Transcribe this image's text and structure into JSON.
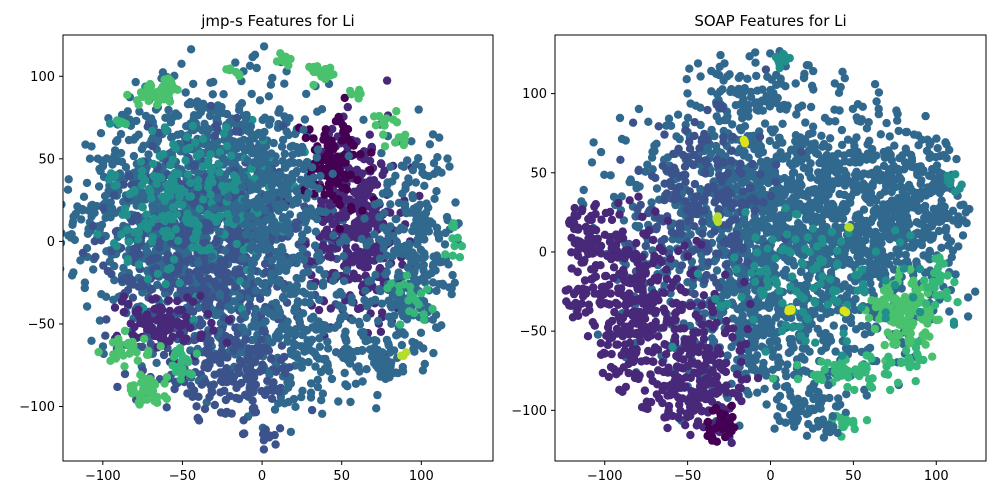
{
  "chart_data": [
    {
      "type": "scatter",
      "title": "jmp-s Features for Li",
      "xlabel": "",
      "ylabel": "",
      "xlim": [
        -125,
        145
      ],
      "ylim": [
        -133,
        125
      ],
      "xticks": [
        -100,
        -50,
        0,
        50,
        100
      ],
      "yticks": [
        -100,
        -50,
        0,
        50,
        100
      ],
      "xtick_labels": [
        "−100",
        "−50",
        "0",
        "50",
        "100"
      ],
      "ytick_labels": [
        "−100",
        "−50",
        "0",
        "50",
        "100"
      ],
      "grid": false,
      "legend": "none",
      "colormap": "viridis",
      "colors": {
        "dark_purple": "#440154",
        "indigo": "#482878",
        "slate_blue": "#3b528b",
        "steel_blue": "#31688e",
        "teal": "#21908d",
        "green": "#35b779",
        "light_green": "#4ac16d",
        "yellow_green": "#b5de2b"
      },
      "clusters": [
        {
          "cx": -40,
          "cy": 20,
          "sx": 38,
          "sy": 38,
          "n": 1300,
          "color": "steel_blue"
        },
        {
          "cx": -35,
          "cy": -10,
          "sx": 32,
          "sy": 32,
          "n": 500,
          "color": "slate_blue"
        },
        {
          "cx": -45,
          "cy": 25,
          "sx": 25,
          "sy": 25,
          "n": 220,
          "color": "teal"
        },
        {
          "cx": 60,
          "cy": 10,
          "sx": 14,
          "sy": 30,
          "n": 320,
          "color": "indigo"
        },
        {
          "cx": 45,
          "cy": 45,
          "sx": 10,
          "sy": 15,
          "n": 110,
          "color": "dark_purple"
        },
        {
          "cx": 95,
          "cy": -10,
          "sx": 20,
          "sy": 35,
          "n": 320,
          "color": "steel_blue"
        },
        {
          "cx": 25,
          "cy": -65,
          "sx": 30,
          "sy": 18,
          "n": 260,
          "color": "steel_blue"
        },
        {
          "cx": -20,
          "cy": -80,
          "sx": 22,
          "sy": 14,
          "n": 160,
          "color": "slate_blue"
        },
        {
          "cx": 10,
          "cy": 15,
          "sx": 15,
          "sy": 30,
          "n": 220,
          "color": "steel_blue"
        },
        {
          "cx": 75,
          "cy": -75,
          "sx": 5,
          "sy": 4,
          "n": 40,
          "color": "steel_blue"
        },
        {
          "cx": -60,
          "cy": -50,
          "sx": 15,
          "sy": 10,
          "n": 90,
          "color": "indigo"
        },
        {
          "cx": 5,
          "cy": -118,
          "sx": 3,
          "sy": 3,
          "n": 10,
          "color": "slate_blue"
        },
        {
          "cx": -70,
          "cy": 88,
          "sx": 6,
          "sy": 3,
          "n": 35,
          "color": "light_green"
        },
        {
          "cx": -58,
          "cy": 93,
          "sx": 3,
          "sy": 3,
          "n": 20,
          "color": "light_green"
        },
        {
          "cx": 38,
          "cy": 103,
          "sx": 4,
          "sy": 3,
          "n": 20,
          "color": "light_green"
        },
        {
          "cx": 14,
          "cy": 110,
          "sx": 2,
          "sy": 2,
          "n": 8,
          "color": "light_green"
        },
        {
          "cx": -18,
          "cy": 102,
          "sx": 2,
          "sy": 2,
          "n": 6,
          "color": "light_green"
        },
        {
          "cx": 58,
          "cy": 90,
          "sx": 2,
          "sy": 2,
          "n": 6,
          "color": "light_green"
        },
        {
          "cx": 78,
          "cy": 72,
          "sx": 4,
          "sy": 4,
          "n": 12,
          "color": "light_green"
        },
        {
          "cx": 88,
          "cy": 62,
          "sx": 3,
          "sy": 3,
          "n": 8,
          "color": "light_green"
        },
        {
          "cx": -85,
          "cy": -65,
          "sx": 7,
          "sy": 4,
          "n": 30,
          "color": "light_green"
        },
        {
          "cx": -72,
          "cy": -92,
          "sx": 6,
          "sy": 6,
          "n": 40,
          "color": "light_green"
        },
        {
          "cx": -50,
          "cy": -75,
          "sx": 5,
          "sy": 5,
          "n": 20,
          "color": "green"
        },
        {
          "cx": 95,
          "cy": -35,
          "sx": 8,
          "sy": 8,
          "n": 20,
          "color": "green"
        },
        {
          "cx": 120,
          "cy": 0,
          "sx": 5,
          "sy": 5,
          "n": 10,
          "color": "green"
        },
        {
          "cx": -88,
          "cy": 72,
          "sx": 2,
          "sy": 2,
          "n": 6,
          "color": "green"
        },
        {
          "cx": 90,
          "cy": -68,
          "sx": 1,
          "sy": 1,
          "n": 3,
          "color": "yellow_green"
        }
      ]
    },
    {
      "type": "scatter",
      "title": "SOAP Features for Li",
      "xlabel": "",
      "ylabel": "",
      "xlim": [
        -130,
        130
      ],
      "ylim": [
        -132,
        137
      ],
      "xticks": [
        -100,
        -50,
        0,
        50,
        100
      ],
      "yticks": [
        -100,
        -50,
        0,
        50,
        100
      ],
      "xtick_labels": [
        "−100",
        "−50",
        "0",
        "50",
        "100"
      ],
      "ytick_labels": [
        "−100",
        "−50",
        "0",
        "50",
        "100"
      ],
      "grid": false,
      "legend": "none",
      "colormap": "viridis",
      "colors": {
        "dark_purple": "#440154",
        "indigo": "#482878",
        "slate_blue": "#3b528b",
        "steel_blue": "#31688e",
        "teal": "#21908d",
        "green": "#35b779",
        "light_green": "#4ac16d",
        "yellow_green": "#b5de2b",
        "yellow": "#dde318"
      },
      "clusters": [
        {
          "cx": 0,
          "cy": 30,
          "sx": 45,
          "sy": 40,
          "n": 1100,
          "color": "steel_blue"
        },
        {
          "cx": 60,
          "cy": 10,
          "sx": 30,
          "sy": 35,
          "n": 450,
          "color": "steel_blue"
        },
        {
          "cx": 0,
          "cy": -50,
          "sx": 35,
          "sy": 25,
          "n": 350,
          "color": "steel_blue"
        },
        {
          "cx": -40,
          "cy": 30,
          "sx": 20,
          "sy": 30,
          "n": 220,
          "color": "slate_blue"
        },
        {
          "cx": 90,
          "cy": 40,
          "sx": 15,
          "sy": 20,
          "n": 150,
          "color": "steel_blue"
        },
        {
          "cx": -90,
          "cy": -25,
          "sx": 18,
          "sy": 25,
          "n": 260,
          "color": "indigo"
        },
        {
          "cx": -60,
          "cy": -60,
          "sx": 20,
          "sy": 25,
          "n": 220,
          "color": "indigo"
        },
        {
          "cx": -40,
          "cy": -90,
          "sx": 12,
          "sy": 15,
          "n": 120,
          "color": "indigo"
        },
        {
          "cx": -30,
          "cy": -110,
          "sx": 5,
          "sy": 6,
          "n": 30,
          "color": "dark_purple"
        },
        {
          "cx": -110,
          "cy": 10,
          "sx": 8,
          "sy": 15,
          "n": 60,
          "color": "indigo"
        },
        {
          "cx": 80,
          "cy": -38,
          "sx": 10,
          "sy": 12,
          "n": 130,
          "color": "light_green"
        },
        {
          "cx": 50,
          "cy": -75,
          "sx": 15,
          "sy": 6,
          "n": 60,
          "color": "green"
        },
        {
          "cx": 100,
          "cy": -20,
          "sx": 6,
          "sy": 8,
          "n": 25,
          "color": "green"
        },
        {
          "cx": 45,
          "cy": -108,
          "sx": 4,
          "sy": 3,
          "n": 15,
          "color": "green"
        },
        {
          "cx": 85,
          "cy": -65,
          "sx": 5,
          "sy": 5,
          "n": 15,
          "color": "green"
        },
        {
          "cx": 20,
          "cy": -100,
          "sx": 10,
          "sy": 10,
          "n": 60,
          "color": "steel_blue"
        },
        {
          "cx": -10,
          "cy": 100,
          "sx": 15,
          "sy": 10,
          "n": 60,
          "color": "steel_blue"
        },
        {
          "cx": 20,
          "cy": -20,
          "sx": 30,
          "sy": 20,
          "n": 120,
          "color": "teal"
        },
        {
          "cx": 5,
          "cy": 120,
          "sx": 3,
          "sy": 3,
          "n": 10,
          "color": "teal"
        },
        {
          "cx": 110,
          "cy": 45,
          "sx": 5,
          "sy": 4,
          "n": 10,
          "color": "teal"
        },
        {
          "cx": -32,
          "cy": 20,
          "sx": 1,
          "sy": 1,
          "n": 3,
          "color": "yellow_green"
        },
        {
          "cx": -15,
          "cy": 70,
          "sx": 1,
          "sy": 1,
          "n": 3,
          "color": "yellow"
        },
        {
          "cx": 12,
          "cy": -37,
          "sx": 2,
          "sy": 1,
          "n": 4,
          "color": "yellow"
        },
        {
          "cx": 45,
          "cy": -38,
          "sx": 1,
          "sy": 1,
          "n": 2,
          "color": "yellow"
        },
        {
          "cx": 48,
          "cy": 15,
          "sx": 1,
          "sy": 1,
          "n": 2,
          "color": "yellow_green"
        }
      ]
    }
  ]
}
